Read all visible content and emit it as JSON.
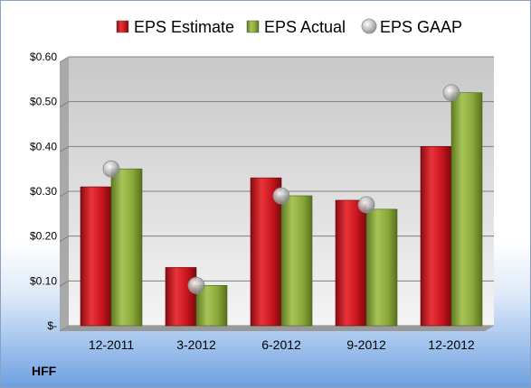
{
  "chart_data": {
    "type": "bar",
    "categories": [
      "12-2011",
      "3-2012",
      "6-2012",
      "9-2012",
      "12-2012"
    ],
    "series": [
      {
        "name": "EPS Estimate",
        "kind": "bar",
        "values": [
          0.31,
          0.13,
          0.33,
          0.28,
          0.4
        ]
      },
      {
        "name": "EPS Actual",
        "kind": "bar",
        "values": [
          0.35,
          0.09,
          0.29,
          0.26,
          0.52
        ]
      },
      {
        "name": "EPS GAAP",
        "kind": "point",
        "values": [
          0.35,
          0.09,
          0.29,
          0.27,
          0.52
        ]
      }
    ],
    "ylim": [
      0,
      0.6
    ],
    "yticks": [
      {
        "value": 0.6,
        "label": "$0.60"
      },
      {
        "value": 0.5,
        "label": "$0.50"
      },
      {
        "value": 0.4,
        "label": "$0.40"
      },
      {
        "value": 0.3,
        "label": "$0.30"
      },
      {
        "value": 0.2,
        "label": "$0.20"
      },
      {
        "value": 0.1,
        "label": "$0.10"
      },
      {
        "value": 0.0,
        "label": "$-"
      }
    ],
    "grid": true,
    "legend_position": "top",
    "colors": {
      "estimate": "#c8141c",
      "actual": "#8aa83a",
      "gaap": "#b8b8b8",
      "plot_background": "#c6c6c6"
    }
  },
  "ticker": "HFF"
}
